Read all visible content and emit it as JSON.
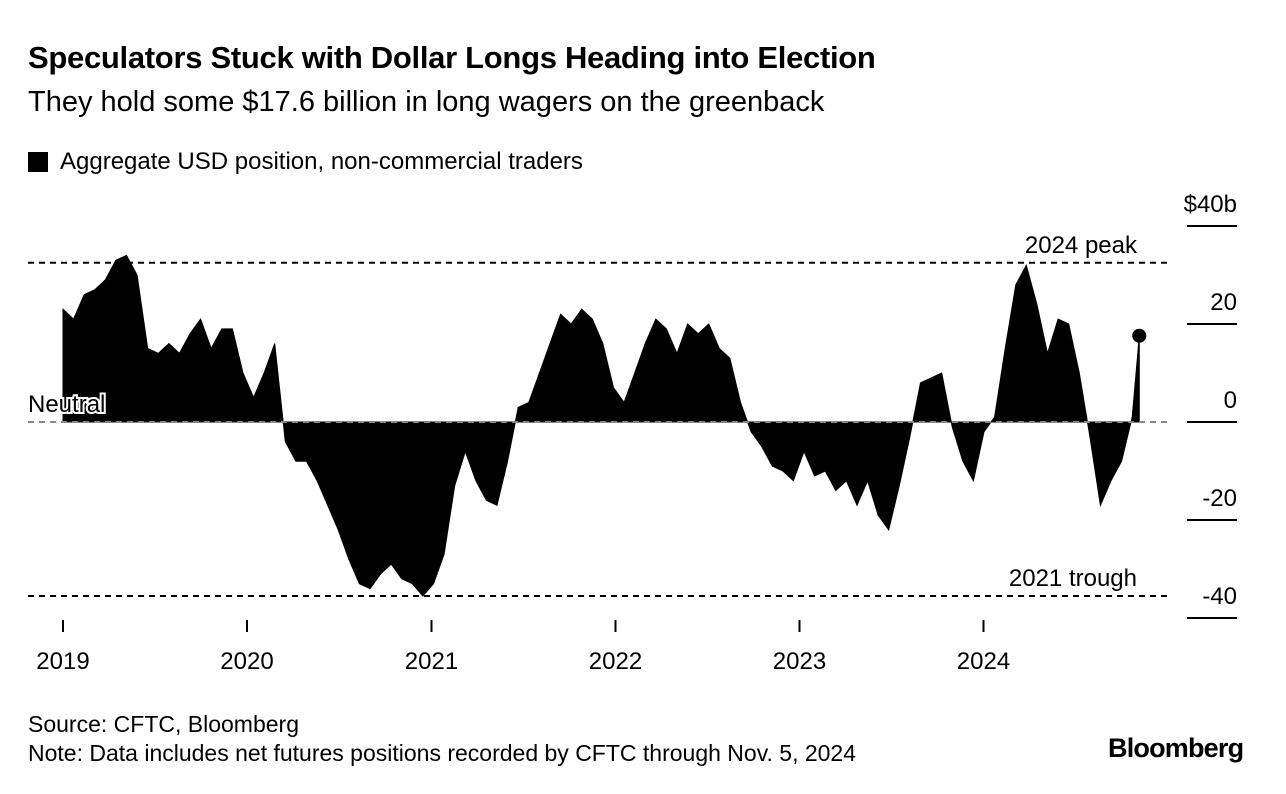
{
  "header": {
    "title": "Speculators Stuck with Dollar Longs Heading into Election",
    "subtitle": "They hold some $17.6 billion in long wagers on the greenback"
  },
  "legend": {
    "label": "Aggregate USD position, non-commercial traders"
  },
  "footer": {
    "source": "Source: CFTC, Bloomberg",
    "note": "Note: Data includes net futures positions recorded by CFTC through Nov. 5, 2024",
    "logo": "Bloomberg"
  },
  "chart_data": {
    "type": "area",
    "color": "#000000",
    "ylim": [
      -40,
      40
    ],
    "y_ticks": [
      {
        "value": 40,
        "label": "$40b"
      },
      {
        "value": 20,
        "label": "20"
      },
      {
        "value": 0,
        "label": "0"
      },
      {
        "value": -20,
        "label": "-20"
      },
      {
        "value": -40,
        "label": "-40"
      }
    ],
    "x_ticks": [
      {
        "date": "2019-01-01",
        "label": "2019"
      },
      {
        "date": "2020-01-01",
        "label": "2020"
      },
      {
        "date": "2021-01-01",
        "label": "2021"
      },
      {
        "date": "2022-01-01",
        "label": "2022"
      },
      {
        "date": "2023-01-01",
        "label": "2023"
      },
      {
        "date": "2024-01-01",
        "label": "2024"
      }
    ],
    "reference_lines": [
      {
        "value": 32.5,
        "label": "2024 peak"
      },
      {
        "value": 0,
        "label": "Neutral"
      },
      {
        "value": -35.5,
        "label": "2021 trough"
      }
    ],
    "last_point": {
      "date": "2024-11-05",
      "value": 17.6
    },
    "series": [
      {
        "x": [
          "2019-01-01",
          "2019-01-22",
          "2019-02-12",
          "2019-03-05",
          "2019-03-26",
          "2019-04-16",
          "2019-05-07",
          "2019-05-28",
          "2019-06-18",
          "2019-07-09",
          "2019-07-30",
          "2019-08-20",
          "2019-09-10",
          "2019-10-01",
          "2019-10-22",
          "2019-11-12",
          "2019-12-03",
          "2019-12-24",
          "2020-01-14",
          "2020-02-04",
          "2020-02-25",
          "2020-03-17",
          "2020-04-07",
          "2020-04-28",
          "2020-05-19",
          "2020-06-09",
          "2020-06-30",
          "2020-07-21",
          "2020-08-11",
          "2020-09-01",
          "2020-09-22",
          "2020-10-13",
          "2020-11-03",
          "2020-11-24",
          "2020-12-15",
          "2021-01-05",
          "2021-01-26",
          "2021-02-16",
          "2021-03-09",
          "2021-03-30",
          "2021-04-20",
          "2021-05-11",
          "2021-06-01",
          "2021-06-22",
          "2021-07-13",
          "2021-08-03",
          "2021-08-24",
          "2021-09-14",
          "2021-10-05",
          "2021-10-26",
          "2021-11-16",
          "2021-12-07",
          "2021-12-28",
          "2022-01-18",
          "2022-02-08",
          "2022-03-01",
          "2022-03-22",
          "2022-04-12",
          "2022-05-03",
          "2022-05-24",
          "2022-06-14",
          "2022-07-05",
          "2022-07-26",
          "2022-08-16",
          "2022-09-06",
          "2022-09-27",
          "2022-10-18",
          "2022-11-08",
          "2022-11-29",
          "2022-12-20",
          "2023-01-10",
          "2023-01-31",
          "2023-02-21",
          "2023-03-14",
          "2023-04-04",
          "2023-04-25",
          "2023-05-16",
          "2023-06-06",
          "2023-06-27",
          "2023-07-18",
          "2023-08-08",
          "2023-08-29",
          "2023-09-19",
          "2023-10-10",
          "2023-10-31",
          "2023-11-21",
          "2023-12-12",
          "2024-01-02",
          "2024-01-23",
          "2024-02-13",
          "2024-03-05",
          "2024-03-26",
          "2024-04-16",
          "2024-05-07",
          "2024-05-28",
          "2024-06-18",
          "2024-07-09",
          "2024-07-30",
          "2024-08-20",
          "2024-09-10",
          "2024-10-01",
          "2024-10-22",
          "2024-11-05"
        ],
        "values": [
          23,
          21,
          26,
          27,
          29,
          33,
          34,
          30,
          15,
          14,
          16,
          14,
          18,
          21,
          15,
          19,
          19,
          10,
          5,
          10,
          16,
          -4,
          -8,
          -8,
          -12,
          -17,
          -22,
          -28,
          -33,
          -34,
          -31,
          -29,
          -32,
          -33,
          -35.5,
          -33,
          -27,
          -13,
          -6,
          -12,
          -16,
          -17,
          -8,
          3,
          4,
          10,
          16,
          22,
          20,
          23,
          21,
          16,
          7,
          4,
          10,
          16,
          21,
          19,
          14,
          20,
          18,
          20,
          15,
          13,
          4,
          -2,
          -5,
          -9,
          -10,
          -12,
          -6,
          -11,
          -10,
          -14,
          -12,
          -17,
          -12,
          -19,
          -22,
          -13,
          -3,
          8,
          9,
          10,
          -1,
          -8,
          -12,
          -2,
          1,
          15,
          28,
          32,
          24,
          14,
          21,
          20,
          10,
          -3,
          -17,
          -12,
          -8,
          1,
          17.6
        ]
      }
    ]
  }
}
